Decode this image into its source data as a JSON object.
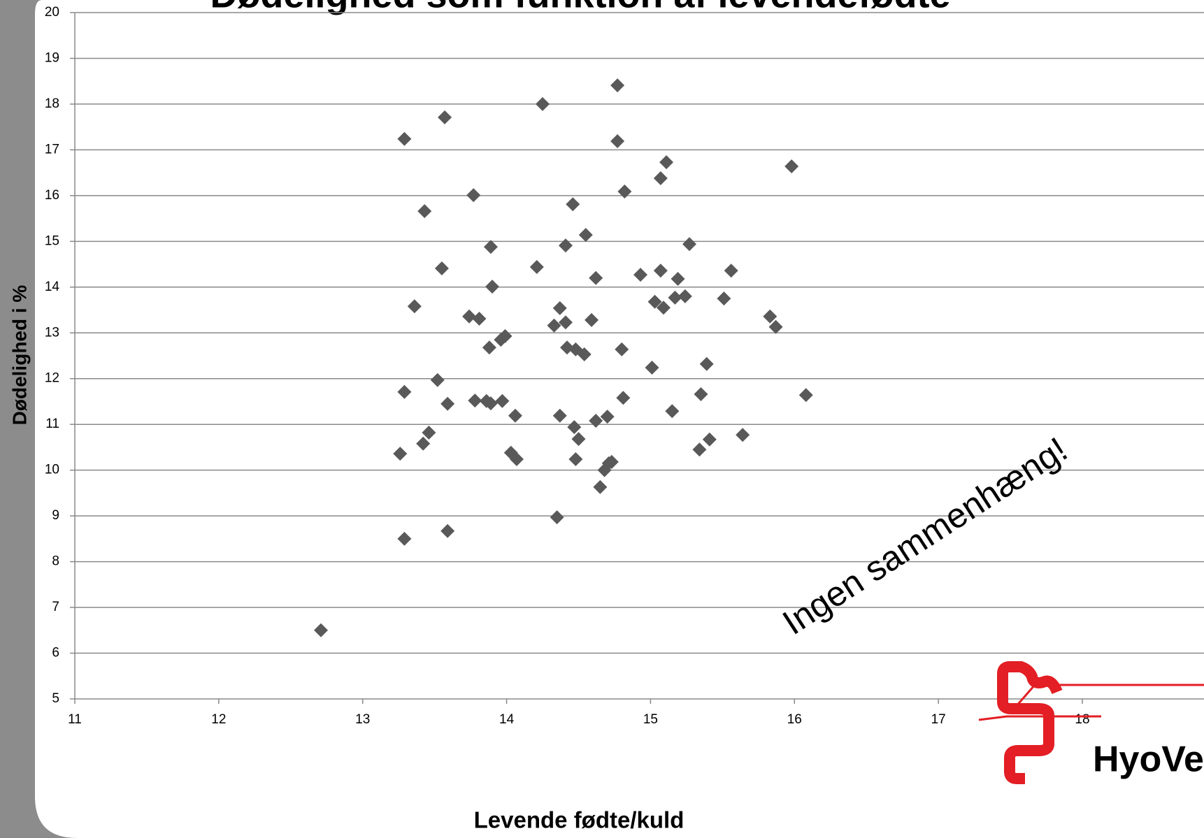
{
  "chart_data": {
    "type": "scatter",
    "title": "Dødelighed som funktion af levendefødte",
    "x_label": "Levende fødte/kuld",
    "y_label": "Dødelighed i %",
    "annotation": "Ingen sammenhæng!",
    "logo": "HyoVe",
    "color": "#595959",
    "grid": true,
    "xlim": [
      11,
      18
    ],
    "xticks": [
      11,
      12,
      13,
      14,
      15,
      16,
      17,
      18
    ],
    "ylim": [
      5,
      20
    ],
    "yticks": [
      5,
      6,
      7,
      8,
      9,
      10,
      11,
      12,
      13,
      14,
      15,
      16,
      17,
      18,
      19,
      20
    ],
    "x": [
      12.71,
      13.29,
      13.59,
      13.26,
      13.42,
      13.46,
      13.29,
      13.52,
      13.59,
      13.36,
      13.55,
      13.43,
      13.29,
      13.57,
      13.77,
      13.89,
      13.9,
      13.74,
      13.81,
      13.88,
      13.96,
      13.99,
      13.78,
      13.86,
      13.89,
      13.97,
      14.06,
      14.03,
      14.07,
      14.25,
      14.21,
      14.37,
      14.33,
      14.41,
      14.41,
      14.46,
      14.55,
      14.59,
      14.62,
      14.42,
      14.48,
      14.54,
      14.37,
      14.47,
      14.5,
      14.48,
      14.62,
      14.7,
      14.65,
      14.68,
      14.71,
      14.73,
      14.35,
      14.77,
      14.77,
      14.82,
      14.8,
      14.81,
      14.93,
      15.01,
      15.07,
      15.11,
      15.07,
      15.03,
      15.09,
      15.17,
      15.19,
      15.24,
      15.27,
      15.15,
      15.35,
      15.39,
      15.34,
      15.41,
      15.51,
      15.56,
      15.64,
      15.83,
      15.87,
      15.98,
      16.08
    ],
    "values": [
      6.5,
      8.5,
      8.67,
      10.36,
      10.58,
      10.82,
      11.71,
      11.97,
      11.45,
      13.58,
      14.41,
      15.66,
      17.24,
      17.71,
      16.01,
      14.88,
      14.01,
      13.36,
      13.31,
      12.68,
      12.85,
      12.93,
      11.52,
      11.51,
      11.46,
      11.51,
      11.19,
      10.38,
      10.24,
      18.0,
      14.44,
      13.54,
      13.16,
      13.23,
      14.91,
      15.81,
      15.14,
      13.28,
      14.2,
      12.68,
      12.64,
      12.53,
      11.19,
      10.94,
      10.68,
      10.24,
      11.08,
      11.17,
      9.63,
      10.0,
      10.15,
      10.18,
      8.97,
      18.41,
      17.19,
      16.09,
      12.64,
      11.58,
      14.27,
      12.24,
      16.38,
      16.73,
      14.36,
      13.68,
      13.55,
      13.77,
      14.18,
      13.8,
      14.94,
      11.29,
      11.66,
      12.32,
      10.45,
      10.67,
      13.75,
      14.36,
      10.77,
      13.36,
      13.13,
      16.64,
      11.64
    ]
  }
}
